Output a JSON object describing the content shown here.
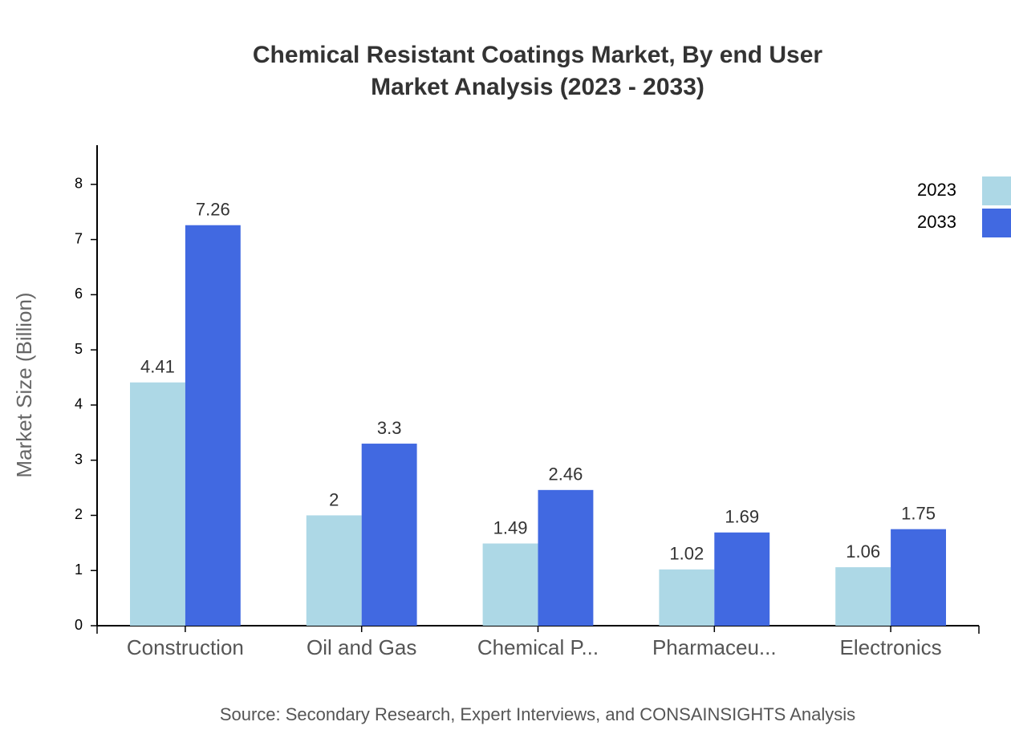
{
  "chart_data": {
    "type": "bar",
    "title": "Chemical Resistant Coatings Market, By end User",
    "subtitle": "Market Analysis (2023 - 2033)",
    "y_label": "Market Size (Billion)",
    "source": "Source: Secondary Research, Expert Interviews, and CONSAINSIGHTS Analysis",
    "categories": [
      "Construction",
      "Oil and Gas",
      "Chemical P...",
      "Pharmaceu...",
      "Electronics"
    ],
    "series": [
      {
        "name": "2023",
        "color": "#add8e6",
        "values": [
          4.41,
          2,
          1.49,
          1.02,
          1.06
        ]
      },
      {
        "name": "2033",
        "color": "#4169e1",
        "values": [
          7.26,
          3.3,
          2.46,
          1.69,
          1.75
        ]
      }
    ],
    "ylim": [
      0,
      8.71
    ],
    "yticks": [
      0,
      1,
      2,
      3,
      4,
      5,
      6,
      7,
      8
    ],
    "legend": "top-right"
  }
}
